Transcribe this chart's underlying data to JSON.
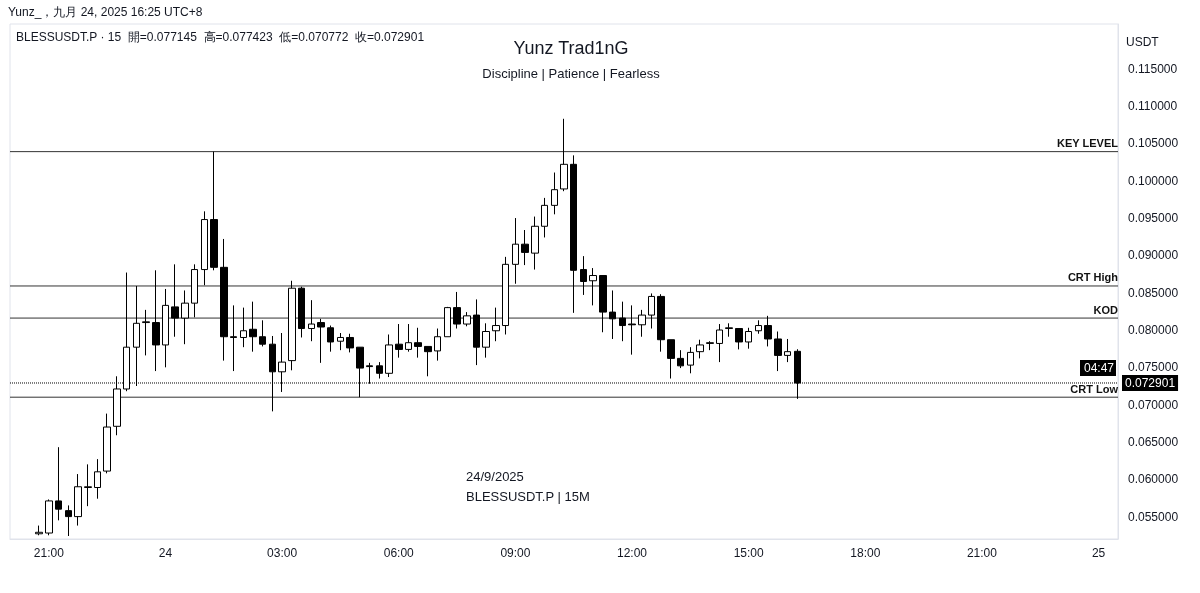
{
  "chart_data": {
    "type": "candlestick",
    "title": "Yunz Trad1nG",
    "subtitle": "Discipline | Patience | Fearless",
    "ylabel": "USDT",
    "color": "#000000",
    "annotations": [
      "Yunz_，九月 24, 2025 16:25 UTC+8",
      "BLESSUSDT.P · 15  開=0.077145  高=0.077423  低=0.070772  收=0.072901",
      "24/9/2025",
      "BLESSUSDT.P | 15M",
      "04:47"
    ],
    "x": [
      "2025-09-23T20:45",
      "2025-09-23T21:00",
      "2025-09-23T21:15",
      "2025-09-23T21:30",
      "2025-09-23T21:45",
      "2025-09-23T22:00",
      "2025-09-23T22:15",
      "2025-09-23T22:30",
      "2025-09-23T22:45",
      "2025-09-23T23:00",
      "2025-09-23T23:15",
      "2025-09-23T23:30",
      "2025-09-23T23:45",
      "2025-09-24T00:00",
      "2025-09-24T00:15",
      "2025-09-24T00:30",
      "2025-09-24T00:45",
      "2025-09-24T01:00",
      "2025-09-24T01:15",
      "2025-09-24T01:30",
      "2025-09-24T01:45",
      "2025-09-24T02:00",
      "2025-09-24T02:15",
      "2025-09-24T02:30",
      "2025-09-24T02:45",
      "2025-09-24T03:00",
      "2025-09-24T03:15",
      "2025-09-24T03:30",
      "2025-09-24T03:45",
      "2025-09-24T04:00",
      "2025-09-24T04:15",
      "2025-09-24T04:30",
      "2025-09-24T04:45",
      "2025-09-24T05:00",
      "2025-09-24T05:15",
      "2025-09-24T05:30",
      "2025-09-24T05:45",
      "2025-09-24T06:00",
      "2025-09-24T06:15",
      "2025-09-24T06:30",
      "2025-09-24T06:45",
      "2025-09-24T07:00",
      "2025-09-24T07:15",
      "2025-09-24T07:30",
      "2025-09-24T07:45",
      "2025-09-24T08:00",
      "2025-09-24T08:15",
      "2025-09-24T08:30",
      "2025-09-24T08:45",
      "2025-09-24T09:00",
      "2025-09-24T09:15",
      "2025-09-24T09:30",
      "2025-09-24T09:45",
      "2025-09-24T10:00",
      "2025-09-24T10:15",
      "2025-09-24T10:30",
      "2025-09-24T10:45",
      "2025-09-24T11:00",
      "2025-09-24T11:15",
      "2025-09-24T11:30",
      "2025-09-24T11:45",
      "2025-09-24T12:00",
      "2025-09-24T12:15",
      "2025-09-24T12:30",
      "2025-09-24T12:45",
      "2025-09-24T13:00",
      "2025-09-24T13:15",
      "2025-09-24T13:30",
      "2025-09-24T13:45",
      "2025-09-24T14:00",
      "2025-09-24T14:15",
      "2025-09-24T14:30",
      "2025-09-24T14:45",
      "2025-09-24T15:00",
      "2025-09-24T15:15",
      "2025-09-24T15:30",
      "2025-09-24T15:45",
      "2025-09-24T16:00",
      "2025-09-24T16:15"
    ],
    "ohlc": [
      [
        0.0527,
        0.0538,
        0.0525,
        0.0529
      ],
      [
        0.0528,
        0.0573,
        0.0525,
        0.0571
      ],
      [
        0.0571,
        0.0643,
        0.0545,
        0.056
      ],
      [
        0.0558,
        0.0565,
        0.0524,
        0.055
      ],
      [
        0.055,
        0.0607,
        0.0538,
        0.059
      ],
      [
        0.0589,
        0.062,
        0.0564,
        0.059
      ],
      [
        0.0589,
        0.0627,
        0.0574,
        0.061
      ],
      [
        0.0611,
        0.0688,
        0.0608,
        0.067
      ],
      [
        0.0671,
        0.0738,
        0.0659,
        0.0721
      ],
      [
        0.0721,
        0.0877,
        0.0718,
        0.0777
      ],
      [
        0.0777,
        0.0859,
        0.0725,
        0.0809
      ],
      [
        0.081,
        0.0827,
        0.0766,
        0.0811
      ],
      [
        0.081,
        0.088,
        0.0745,
        0.078
      ],
      [
        0.078,
        0.0855,
        0.075,
        0.0833
      ],
      [
        0.0831,
        0.0888,
        0.0791,
        0.0816
      ],
      [
        0.0816,
        0.0853,
        0.0781,
        0.0836
      ],
      [
        0.0836,
        0.0888,
        0.0817,
        0.0881
      ],
      [
        0.0881,
        0.0959,
        0.086,
        0.0948
      ],
      [
        0.0948,
        0.1039,
        0.088,
        0.0884
      ],
      [
        0.0884,
        0.0922,
        0.0759,
        0.0791
      ],
      [
        0.0791,
        0.0833,
        0.0745,
        0.079
      ],
      [
        0.079,
        0.083,
        0.0777,
        0.0799
      ],
      [
        0.0801,
        0.0838,
        0.0771,
        0.0791
      ],
      [
        0.0791,
        0.0813,
        0.0778,
        0.0781
      ],
      [
        0.0781,
        0.0792,
        0.0691,
        0.0744
      ],
      [
        0.0744,
        0.0796,
        0.0717,
        0.0757
      ],
      [
        0.0759,
        0.0866,
        0.0746,
        0.0856
      ],
      [
        0.0856,
        0.0858,
        0.079,
        0.0802
      ],
      [
        0.0802,
        0.084,
        0.0785,
        0.0808
      ],
      [
        0.081,
        0.0815,
        0.0756,
        0.0804
      ],
      [
        0.0803,
        0.0806,
        0.0771,
        0.0784
      ],
      [
        0.0785,
        0.0796,
        0.0773,
        0.079
      ],
      [
        0.079,
        0.0795,
        0.077,
        0.0776
      ],
      [
        0.0777,
        0.0777,
        0.071,
        0.0749
      ],
      [
        0.0752,
        0.0756,
        0.0728,
        0.0751
      ],
      [
        0.0752,
        0.0757,
        0.0735,
        0.0742
      ],
      [
        0.0742,
        0.0794,
        0.0737,
        0.078
      ],
      [
        0.0781,
        0.0808,
        0.0763,
        0.0774
      ],
      [
        0.0774,
        0.0808,
        0.0771,
        0.0783
      ],
      [
        0.0783,
        0.0803,
        0.0763,
        0.0778
      ],
      [
        0.0778,
        0.0778,
        0.0738,
        0.0771
      ],
      [
        0.0772,
        0.0802,
        0.0759,
        0.0791
      ],
      [
        0.0791,
        0.0831,
        0.0791,
        0.083
      ],
      [
        0.083,
        0.0851,
        0.0802,
        0.0808
      ],
      [
        0.0808,
        0.0824,
        0.0805,
        0.0819
      ],
      [
        0.082,
        0.0841,
        0.0753,
        0.0777
      ],
      [
        0.0777,
        0.0809,
        0.0763,
        0.0798
      ],
      [
        0.0799,
        0.083,
        0.0785,
        0.0806
      ],
      [
        0.0806,
        0.0898,
        0.0794,
        0.0888
      ],
      [
        0.0888,
        0.095,
        0.0862,
        0.0915
      ],
      [
        0.0915,
        0.0934,
        0.0887,
        0.0904
      ],
      [
        0.0903,
        0.0952,
        0.0881,
        0.0939
      ],
      [
        0.0939,
        0.0977,
        0.0924,
        0.0967
      ],
      [
        0.0967,
        0.1011,
        0.0955,
        0.0988
      ],
      [
        0.0989,
        0.1083,
        0.0986,
        0.1022
      ],
      [
        0.1022,
        0.1034,
        0.0823,
        0.088
      ],
      [
        0.0881,
        0.0899,
        0.0847,
        0.0865
      ],
      [
        0.0866,
        0.0883,
        0.0833,
        0.0873
      ],
      [
        0.0873,
        0.0873,
        0.0797,
        0.0824
      ],
      [
        0.0824,
        0.0853,
        0.0788,
        0.0815
      ],
      [
        0.0816,
        0.0838,
        0.0785,
        0.0806
      ],
      [
        0.0808,
        0.0833,
        0.0767,
        0.0807
      ],
      [
        0.0807,
        0.0827,
        0.0791,
        0.082
      ],
      [
        0.082,
        0.0849,
        0.0802,
        0.0845
      ],
      [
        0.0845,
        0.0848,
        0.0771,
        0.0787
      ],
      [
        0.0787,
        0.0787,
        0.0735,
        0.0762
      ],
      [
        0.0762,
        0.0773,
        0.0749,
        0.0752
      ],
      [
        0.0753,
        0.0777,
        0.0742,
        0.077
      ],
      [
        0.0771,
        0.0787,
        0.0762,
        0.078
      ],
      [
        0.0782,
        0.0785,
        0.0773,
        0.0783
      ],
      [
        0.0782,
        0.0808,
        0.0757,
        0.08
      ],
      [
        0.0802,
        0.0809,
        0.0791,
        0.0803
      ],
      [
        0.0802,
        0.0802,
        0.0774,
        0.0784
      ],
      [
        0.0784,
        0.0803,
        0.0775,
        0.0798
      ],
      [
        0.0799,
        0.0813,
        0.0795,
        0.0806
      ],
      [
        0.0806,
        0.0819,
        0.0778,
        0.0788
      ],
      [
        0.0788,
        0.0798,
        0.0745,
        0.0766
      ],
      [
        0.0766,
        0.0788,
        0.0757,
        0.0771
      ],
      [
        0.077145,
        0.077423,
        0.070772,
        0.072901
      ]
    ],
    "xlim": [
      "2025-09-23T20:00",
      "2025-09-25T00:30"
    ],
    "xticks": [
      {
        "value": "2025-09-23T21:00",
        "label": "21:00"
      },
      {
        "value": "2025-09-24T00:00",
        "label": "24"
      },
      {
        "value": "2025-09-24T03:00",
        "label": "03:00"
      },
      {
        "value": "2025-09-24T06:00",
        "label": "06:00"
      },
      {
        "value": "2025-09-24T09:00",
        "label": "09:00"
      },
      {
        "value": "2025-09-24T12:00",
        "label": "12:00"
      },
      {
        "value": "2025-09-24T15:00",
        "label": "15:00"
      },
      {
        "value": "2025-09-24T18:00",
        "label": "18:00"
      },
      {
        "value": "2025-09-24T21:00",
        "label": "21:00"
      },
      {
        "value": "2025-09-25T00:00",
        "label": "25"
      }
    ],
    "ylim": [
      0.052,
      0.121
    ],
    "yticks": [
      {
        "value": 0.055,
        "label": "0.055000"
      },
      {
        "value": 0.06,
        "label": "0.060000"
      },
      {
        "value": 0.065,
        "label": "0.065000"
      },
      {
        "value": 0.07,
        "label": "0.070000"
      },
      {
        "value": 0.075,
        "label": "0.075000"
      },
      {
        "value": 0.08,
        "label": "0.080000"
      },
      {
        "value": 0.085,
        "label": "0.085000"
      },
      {
        "value": 0.09,
        "label": "0.090000"
      },
      {
        "value": 0.095,
        "label": "0.095000"
      },
      {
        "value": 0.1,
        "label": "0.100000"
      },
      {
        "value": 0.105,
        "label": "0.105000"
      },
      {
        "value": 0.11,
        "label": "0.110000"
      },
      {
        "value": 0.115,
        "label": "0.115000"
      }
    ],
    "ref_lines": [
      {
        "axis": "y",
        "value": 0.1039,
        "label": "KEY LEVEL",
        "color": "#333333",
        "line_style": "solid"
      },
      {
        "axis": "y",
        "value": 0.0859,
        "label": "CRT High",
        "color": "#333333",
        "line_style": "solid"
      },
      {
        "axis": "y",
        "value": 0.0816,
        "label": "KOD",
        "color": "#333333",
        "line_style": "solid"
      },
      {
        "axis": "y",
        "value": 0.071,
        "label": "CRT Low",
        "color": "#333333",
        "line_style": "solid"
      },
      {
        "axis": "y",
        "value": 0.072901,
        "label": "0.072901",
        "color": "#000000",
        "line_style": "dotted"
      }
    ],
    "grid": false
  }
}
